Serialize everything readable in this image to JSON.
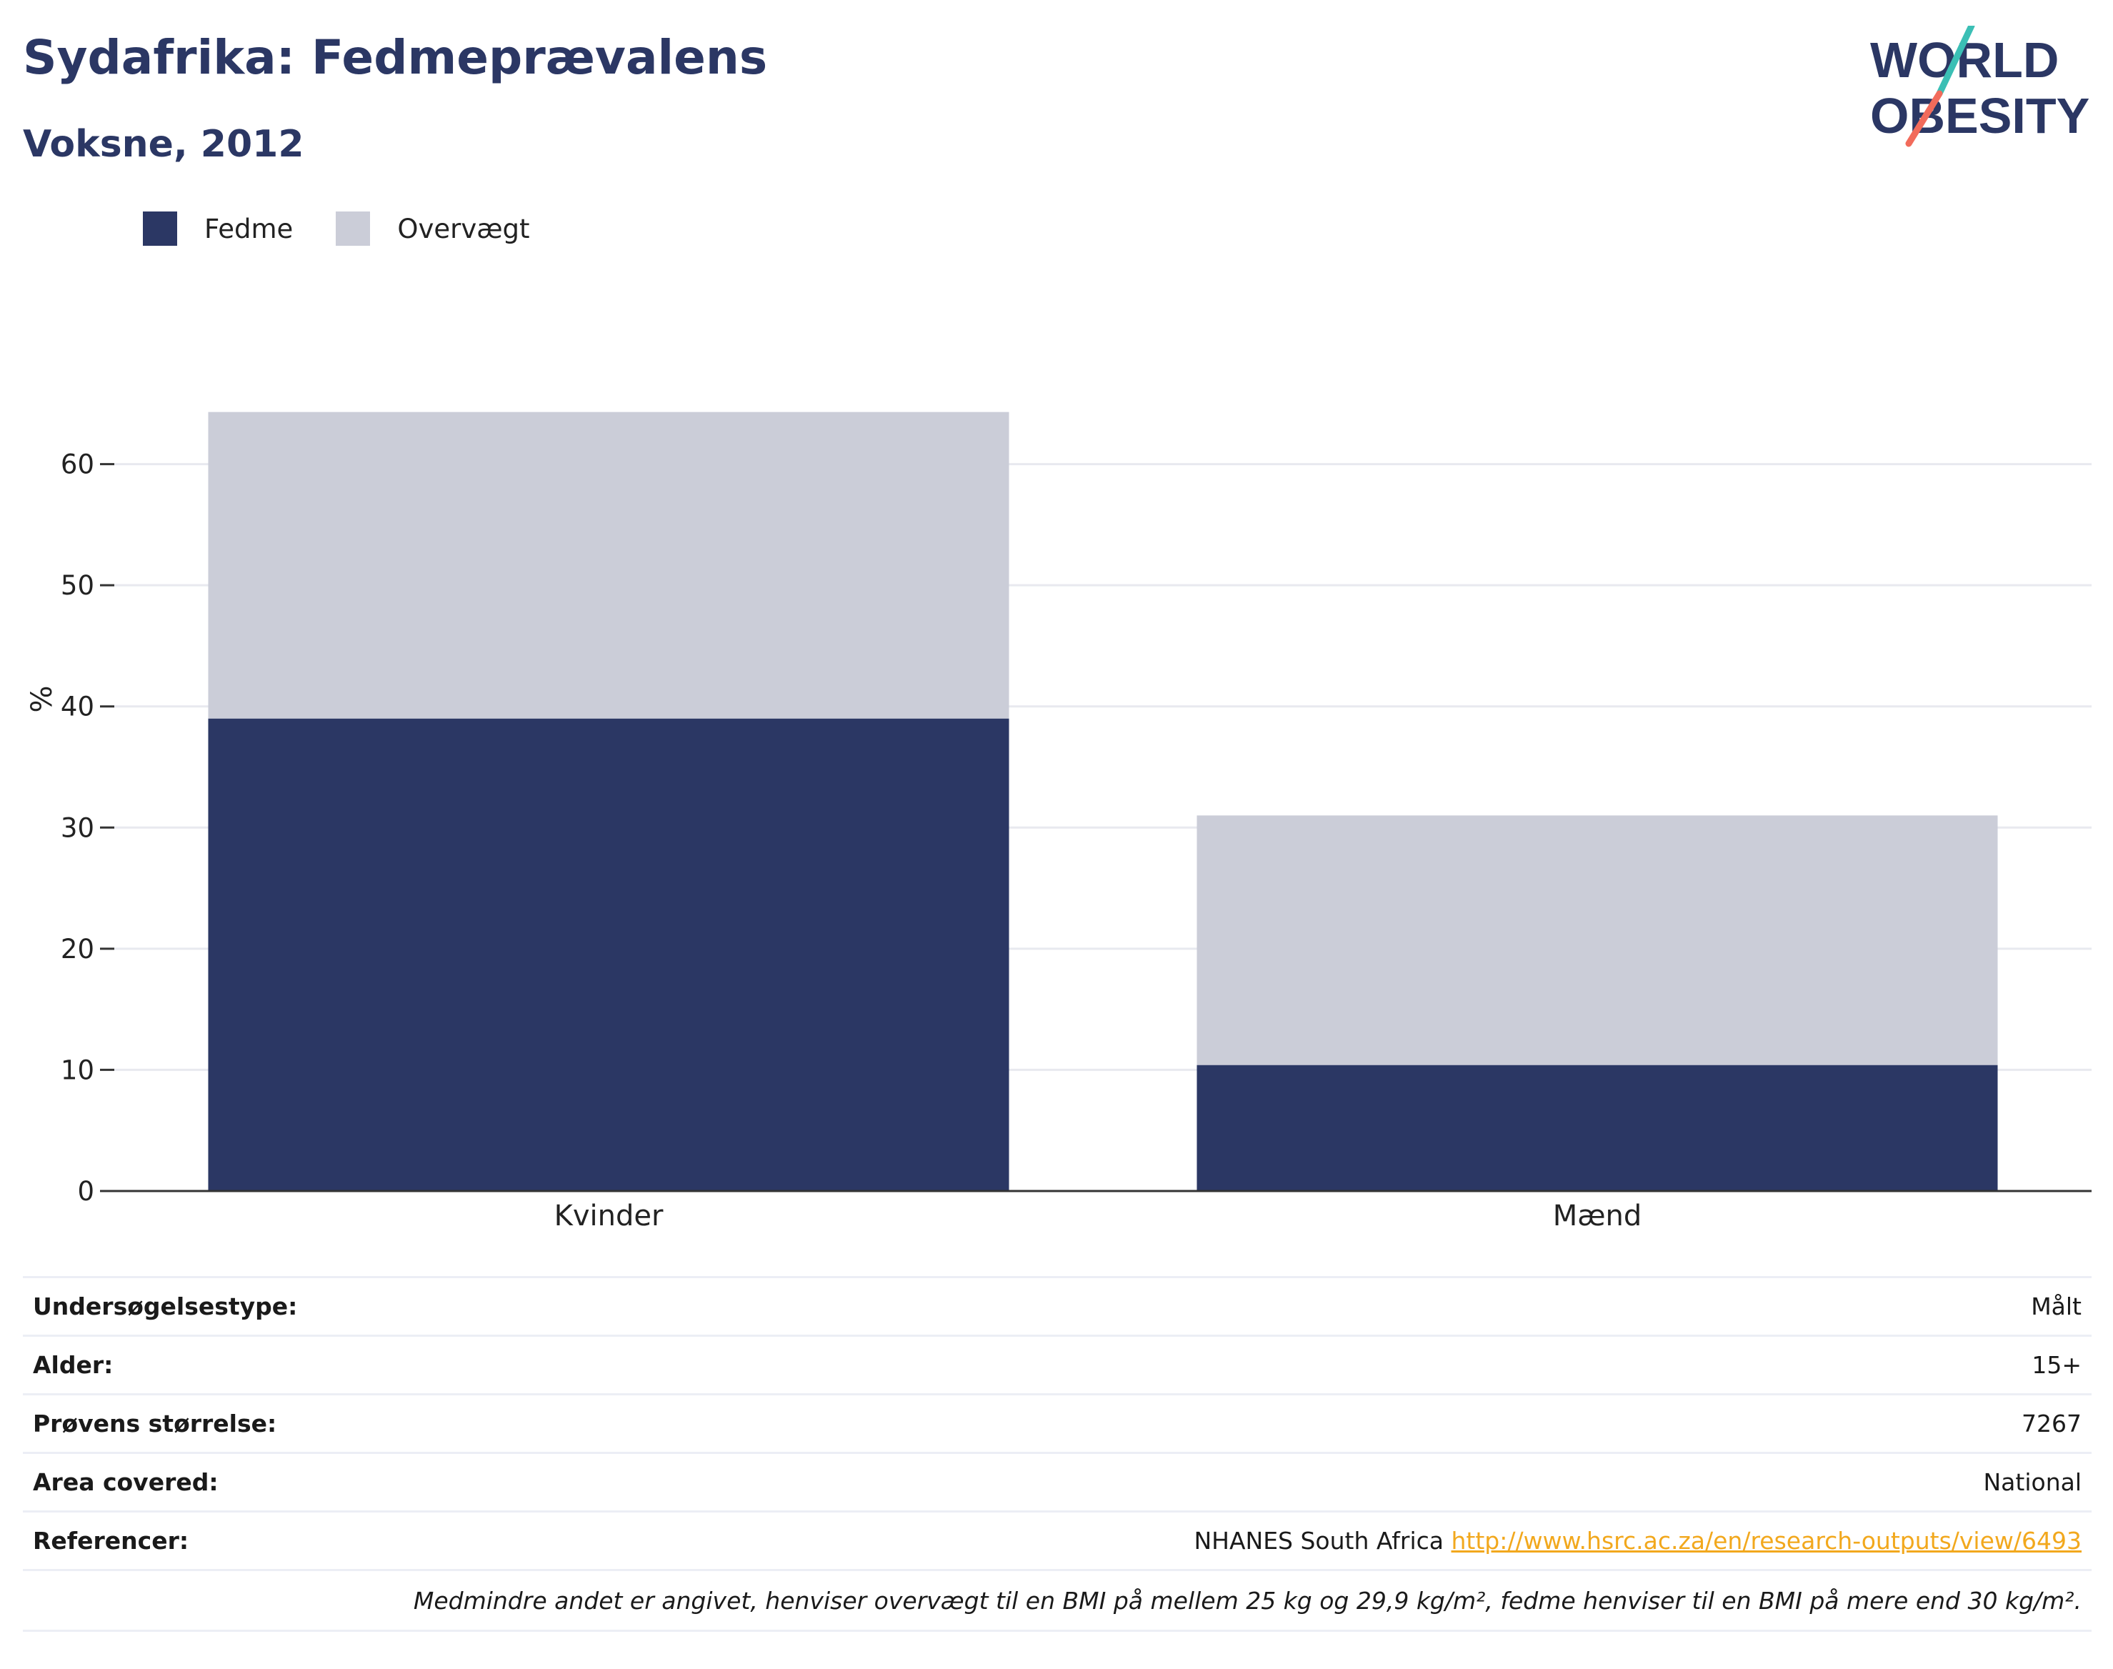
{
  "header": {
    "title": "Sydafrika: Fedmeprævalens",
    "subtitle": "Voksne, 2012"
  },
  "logo": {
    "line1": "WORLD",
    "line2": "OBESITY",
    "colors": {
      "text": "#2b3764",
      "teal": "#3bbfb5",
      "coral": "#f26b5b"
    }
  },
  "legend": [
    {
      "label": "Fedme",
      "color": "#2b3764"
    },
    {
      "label": "Overvægt",
      "color": "#cbcdd8"
    }
  ],
  "chart_data": {
    "type": "bar",
    "stacked": true,
    "categories": [
      "Kvinder",
      "Mænd"
    ],
    "series": [
      {
        "name": "Fedme",
        "values": [
          39.0,
          10.4
        ],
        "color": "#2b3764"
      },
      {
        "name": "Overvægt",
        "values": [
          25.3,
          20.6
        ],
        "color": "#cbcdd8"
      }
    ],
    "ylabel": "%",
    "ylim": [
      0,
      70
    ],
    "yticks": [
      0,
      10,
      20,
      30,
      40,
      50,
      60
    ],
    "grid": true,
    "legend_position": "top-left"
  },
  "info": {
    "rows": [
      {
        "key": "Undersøgelsestype:",
        "value": "Målt"
      },
      {
        "key": "Alder:",
        "value": "15+"
      },
      {
        "key": "Prøvens størrelse:",
        "value": "7267"
      },
      {
        "key": "Area covered:",
        "value": "National"
      }
    ],
    "references": {
      "key": "Referencer:",
      "source": "NHANES South Africa",
      "link": "http://www.hsrc.ac.za/en/research-outputs/view/6493"
    },
    "note": "Medmindre andet er angivet, henviser overvægt til en BMI på mellem 25 kg og 29,9 kg/m², fedme henviser til en BMI på mere end 30 kg/m²."
  }
}
